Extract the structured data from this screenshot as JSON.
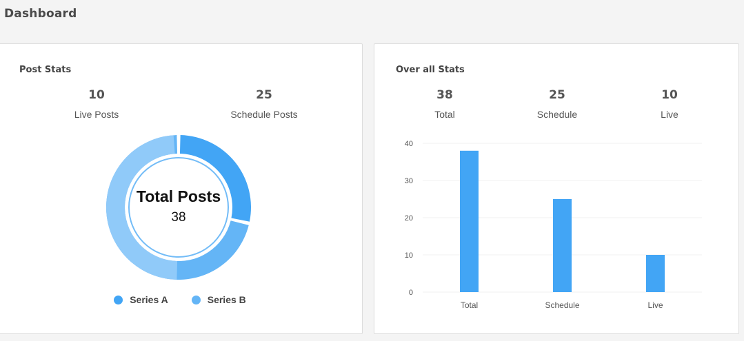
{
  "header": {
    "title": "Dashboard"
  },
  "post_stats": {
    "title": "Post Stats",
    "stats": [
      {
        "value": "10",
        "label": "Live Posts"
      },
      {
        "value": "25",
        "label": "Schedule Posts"
      }
    ],
    "donut": {
      "center_title": "Total Posts",
      "center_value": "38"
    },
    "legend": [
      {
        "label": "Series A",
        "color": "#42a5f5"
      },
      {
        "label": "Series B",
        "color": "#64b5f6"
      }
    ]
  },
  "overall_stats": {
    "title": "Over all Stats",
    "stats": [
      {
        "value": "38",
        "label": "Total"
      },
      {
        "value": "25",
        "label": "Schedule"
      },
      {
        "value": "10",
        "label": "Live"
      }
    ]
  },
  "chart_data": [
    {
      "type": "pie",
      "categories": [
        "Series A",
        "Series B"
      ],
      "values": [
        10,
        25
      ],
      "colors": [
        "#42a5f5",
        "#64b5f6"
      ],
      "center_title": "Total Posts",
      "center_value": 38
    },
    {
      "type": "bar",
      "categories": [
        "Total",
        "Schedule",
        "Live"
      ],
      "values": [
        38,
        25,
        10
      ],
      "ylim": [
        0,
        40
      ],
      "yticks": [
        0,
        10,
        20,
        30,
        40
      ],
      "grid": true,
      "color": "#42a5f5"
    }
  ]
}
